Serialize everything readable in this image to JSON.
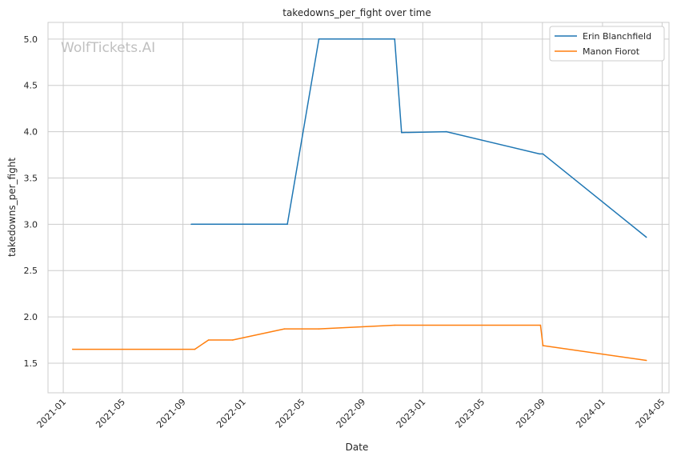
{
  "chart_data": {
    "type": "line",
    "title": "takedowns_per_fight over time",
    "xlabel": "Date",
    "ylabel": "takedowns_per_fight",
    "watermark": "WolfTickets.AI",
    "x_ticks": [
      "2021-01",
      "2021-05",
      "2021-09",
      "2022-01",
      "2022-05",
      "2022-09",
      "2023-01",
      "2023-05",
      "2023-09",
      "2024-01",
      "2024-05"
    ],
    "y_ticks": [
      "1.5",
      "2.0",
      "2.5",
      "3.0",
      "3.5",
      "4.0",
      "4.5",
      "5.0"
    ],
    "xlim": [
      "2020-12-01",
      "2024-05-15"
    ],
    "ylim": [
      1.18,
      5.18
    ],
    "grid": true,
    "legend_position": "top-right",
    "series": [
      {
        "name": "Erin Blanchfield",
        "color": "#1f77b4",
        "points": [
          {
            "x": "2021-09-18",
            "y": 3.0
          },
          {
            "x": "2022-04-01",
            "y": 3.0
          },
          {
            "x": "2022-06-04",
            "y": 5.0
          },
          {
            "x": "2022-11-05",
            "y": 5.0
          },
          {
            "x": "2022-11-19",
            "y": 3.99
          },
          {
            "x": "2023-02-18",
            "y": 4.0
          },
          {
            "x": "2023-08-26",
            "y": 3.76
          },
          {
            "x": "2023-09-02",
            "y": 3.76
          },
          {
            "x": "2024-03-30",
            "y": 2.86
          }
        ]
      },
      {
        "name": "Manon Fiorot",
        "color": "#ff7f0e",
        "points": [
          {
            "x": "2021-01-20",
            "y": 1.65
          },
          {
            "x": "2021-09-25",
            "y": 1.65
          },
          {
            "x": "2021-10-23",
            "y": 1.75
          },
          {
            "x": "2021-12-11",
            "y": 1.75
          },
          {
            "x": "2022-03-26",
            "y": 1.87
          },
          {
            "x": "2022-06-04",
            "y": 1.87
          },
          {
            "x": "2022-11-05",
            "y": 1.91
          },
          {
            "x": "2023-08-28",
            "y": 1.91
          },
          {
            "x": "2023-09-02",
            "y": 1.69
          },
          {
            "x": "2024-03-30",
            "y": 1.53
          }
        ]
      }
    ]
  }
}
